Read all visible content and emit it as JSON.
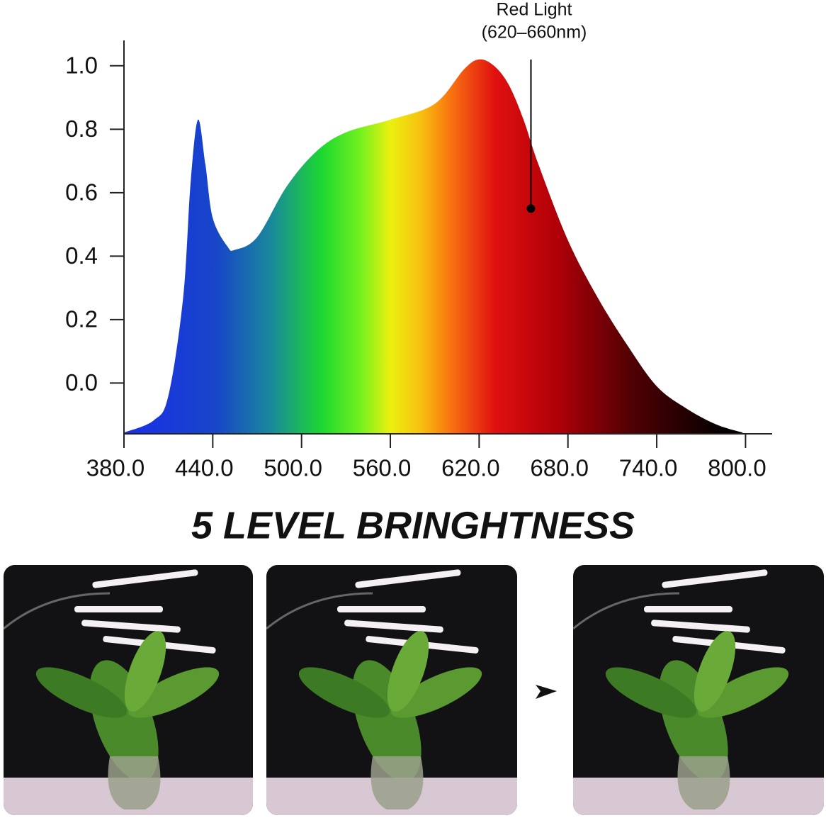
{
  "chart_data": {
    "type": "area",
    "x": [
      380,
      400,
      410,
      420,
      425,
      430,
      435,
      440,
      450,
      455,
      470,
      490,
      510,
      530,
      560,
      590,
      610,
      620,
      630,
      640,
      650,
      660,
      680,
      700,
      720,
      740,
      760,
      780,
      798
    ],
    "values": [
      -0.156,
      -0.118,
      -0.04,
      0.27,
      0.63,
      0.83,
      0.69,
      0.52,
      0.43,
      0.42,
      0.46,
      0.62,
      0.73,
      0.79,
      0.83,
      0.88,
      0.99,
      1.02,
      1.0,
      0.94,
      0.83,
      0.69,
      0.45,
      0.27,
      0.12,
      -0.01,
      -0.08,
      -0.13,
      -0.156
    ],
    "xlim": [
      380,
      818
    ],
    "ylim": [
      -0.16,
      1.08
    ],
    "xticks": [
      {
        "value": 380,
        "label": "380.0"
      },
      {
        "value": 440,
        "label": "440.0"
      },
      {
        "value": 500,
        "label": "500.0"
      },
      {
        "value": 560,
        "label": "560.0"
      },
      {
        "value": 620,
        "label": "620.0"
      },
      {
        "value": 680,
        "label": "680.0"
      },
      {
        "value": 740,
        "label": "740.0"
      },
      {
        "value": 800,
        "label": "800.0"
      }
    ],
    "yticks": [
      {
        "value": 0,
        "label": "0.0"
      },
      0.2,
      0.4,
      0.6,
      0.8,
      {
        "value": 1,
        "label": "1.0"
      }
    ],
    "annotation": {
      "text": [
        "Red Light",
        "(620–660nm)"
      ],
      "x": 655,
      "y": 0.55
    }
  },
  "heading": "5 LEVEL BRINGHTNESS"
}
